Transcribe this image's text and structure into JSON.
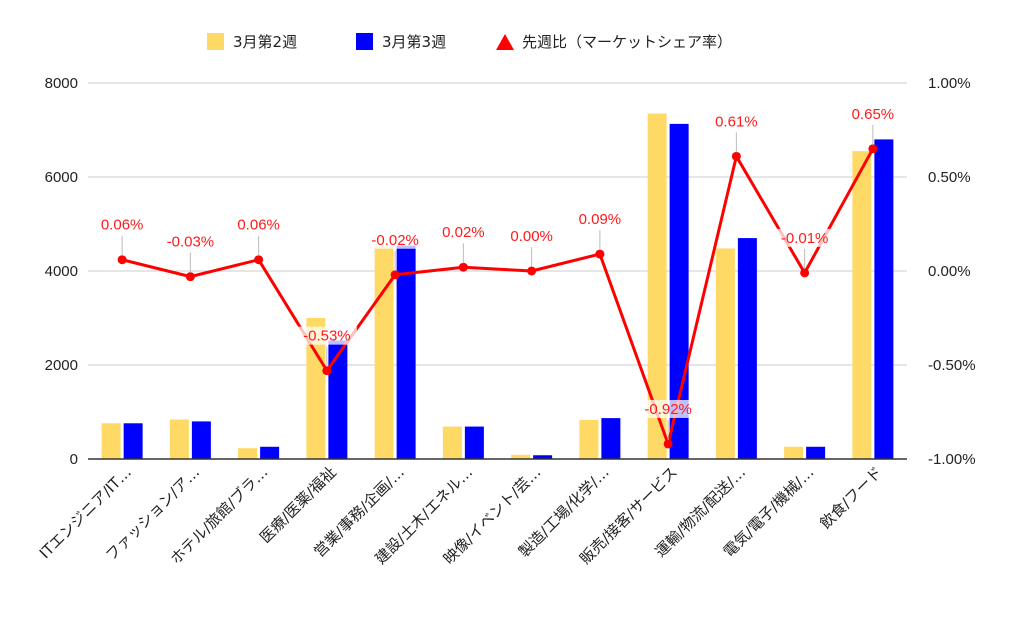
{
  "chart_data": {
    "type": "bar",
    "categories": [
      "ITエンジニア/IT…",
      "ファッション/ア…",
      "ホテル/旅館/ブラ…",
      "医療/医薬/福祉",
      "営業/事務/企画/…",
      "建設/土木/エネル…",
      "映像/イベント/芸…",
      "製造/工場/化学/…",
      "販売/接客/サービス",
      "運輸/物流/配送/…",
      "電気/電子/機械/…",
      "飲食/フード"
    ],
    "series": [
      {
        "name": "3月第2週",
        "axis": "left",
        "kind": "bar",
        "color": "#ffd966",
        "values": [
          760,
          840,
          230,
          3000,
          4520,
          690,
          90,
          830,
          7350,
          4480,
          260,
          6550
        ]
      },
      {
        "name": "3月第3週",
        "axis": "left",
        "kind": "bar",
        "color": "#0000ff",
        "values": [
          760,
          800,
          260,
          2520,
          4540,
          690,
          80,
          870,
          7130,
          4700,
          260,
          6800
        ]
      },
      {
        "name": "先週比（マーケットシェア率）",
        "axis": "right",
        "kind": "line",
        "color": "#ff0000",
        "values": [
          0.06,
          -0.03,
          0.06,
          -0.53,
          -0.02,
          0.02,
          0.0,
          0.09,
          -0.92,
          0.61,
          -0.01,
          0.65
        ],
        "labels": [
          "0.06%",
          "-0.03%",
          "0.06%",
          "-0.53%",
          "-0.02%",
          "0.02%",
          "0.00%",
          "0.09%",
          "-0.92%",
          "0.61%",
          "-0.01%",
          "0.65%"
        ]
      }
    ],
    "left_axis": {
      "ylim": [
        0,
        8000
      ],
      "ticks": [
        0,
        2000,
        4000,
        6000,
        8000
      ],
      "tick_labels": [
        "0",
        "2000",
        "4000",
        "6000",
        "8000"
      ]
    },
    "right_axis": {
      "ylim": [
        -1.0,
        1.0
      ],
      "ticks": [
        -1.0,
        -0.5,
        0.0,
        0.5,
        1.0
      ],
      "tick_labels": [
        "-1.00%",
        "-0.50%",
        "0.00%",
        "0.50%",
        "1.00%"
      ]
    },
    "grid": true,
    "legend_position": "top-center"
  }
}
